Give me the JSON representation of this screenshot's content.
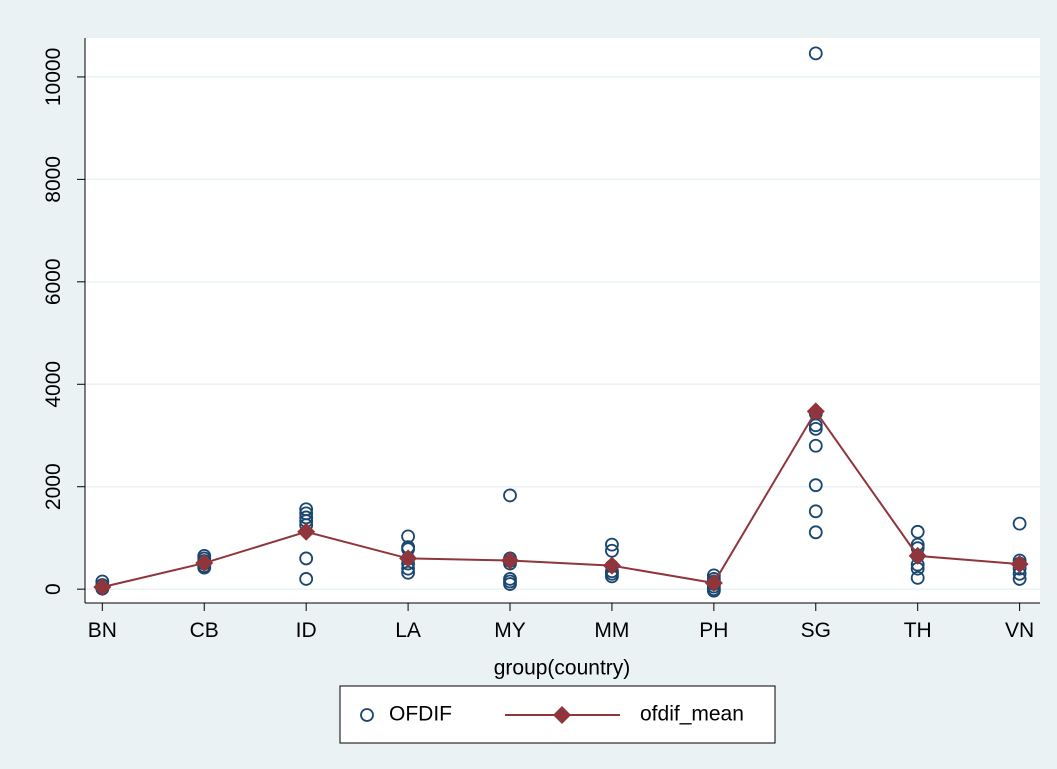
{
  "chart_data": {
    "type": "scatter-line",
    "x_label": "group(country)",
    "xlim": [
      0.83,
      10.2
    ],
    "xticks": [
      {
        "value": 1,
        "label": "BN"
      },
      {
        "value": 2,
        "label": "CB"
      },
      {
        "value": 3,
        "label": "ID"
      },
      {
        "value": 4,
        "label": "LA"
      },
      {
        "value": 5,
        "label": "MY"
      },
      {
        "value": 6,
        "label": "MM"
      },
      {
        "value": 7,
        "label": "PH"
      },
      {
        "value": 8,
        "label": "SG"
      },
      {
        "value": 9,
        "label": "TH"
      },
      {
        "value": 10,
        "label": "VN"
      }
    ],
    "ylim": [
      -270,
      10760
    ],
    "yticks": [
      0,
      2000,
      4000,
      6000,
      8000,
      10000
    ],
    "grid": true,
    "legend_position": "bottom",
    "series": [
      {
        "name": "OFDIF",
        "type": "scatter",
        "color": "#1a476f",
        "x": [
          1,
          1,
          1,
          1,
          2,
          2,
          2,
          2,
          2,
          2,
          3,
          3,
          3,
          3,
          3,
          3,
          3,
          4,
          4,
          4,
          4,
          4,
          4,
          4,
          5,
          5,
          5,
          5,
          5,
          5,
          5,
          6,
          6,
          6,
          6,
          6,
          6,
          7,
          7,
          7,
          7,
          7,
          7,
          7,
          8,
          8,
          8,
          8,
          8,
          8,
          8,
          8,
          9,
          9,
          9,
          9,
          9,
          9,
          9,
          10,
          10,
          10,
          10,
          10,
          10
        ],
        "values": [
          150,
          80,
          30,
          10,
          650,
          600,
          550,
          500,
          450,
          420,
          1560,
          1480,
          1400,
          1330,
          1250,
          600,
          200,
          1030,
          820,
          780,
          600,
          500,
          400,
          320,
          1830,
          600,
          550,
          500,
          200,
          150,
          100,
          870,
          750,
          450,
          350,
          300,
          250,
          270,
          200,
          150,
          100,
          50,
          0,
          -30,
          10460,
          3430,
          3200,
          3130,
          2800,
          2030,
          1520,
          1110,
          1120,
          870,
          800,
          650,
          480,
          400,
          220,
          1280,
          560,
          500,
          400,
          300,
          200
        ]
      },
      {
        "name": "ofdif_mean",
        "type": "line",
        "color": "#90353b",
        "x": [
          1,
          2,
          3,
          4,
          5,
          6,
          7,
          8,
          9,
          10
        ],
        "values": [
          40,
          510,
          1120,
          600,
          560,
          460,
          120,
          3470,
          650,
          490
        ]
      }
    ]
  }
}
